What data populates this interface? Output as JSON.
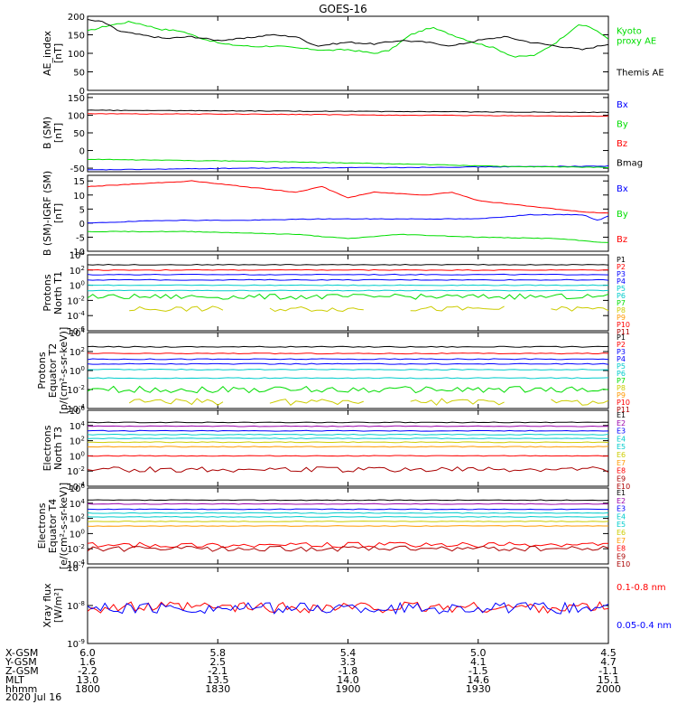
{
  "title": "GOES-16",
  "date": "2020 Jul 16",
  "colors": {
    "black": "#000000",
    "red": "#ff0000",
    "green": "#00dd00",
    "blue": "#0000ff",
    "cyan": "#00cccc",
    "yellow": "#cccc00",
    "orange": "#ff9900",
    "darkred": "#aa0000",
    "purple": "#9900aa"
  },
  "ephemeris": {
    "rows": [
      {
        "label": "X-GSM",
        "values": [
          "6.0",
          "5.8",
          "5.4",
          "5.0",
          "4.5"
        ]
      },
      {
        "label": "Y-GSM",
        "values": [
          "1.6",
          "2.5",
          "3.3",
          "4.1",
          "4.7"
        ]
      },
      {
        "label": "Z-GSM",
        "values": [
          "-2.2",
          "-2.1",
          "-1.8",
          "-1.5",
          "-1.1"
        ]
      },
      {
        "label": "MLT",
        "values": [
          "13.0",
          "13.5",
          "14.0",
          "14.6",
          "15.1"
        ]
      },
      {
        "label": "hhmm",
        "values": [
          "1800",
          "1830",
          "1900",
          "1930",
          "2000"
        ]
      }
    ]
  },
  "chart_data": [
    {
      "type": "line",
      "ylabel": [
        "AE_index",
        "[nT]"
      ],
      "scale": "linear",
      "ylim": [
        0,
        200
      ],
      "ticks": [
        0,
        50,
        100,
        150,
        200
      ],
      "tick_labels": [
        "0",
        "50",
        "100",
        "150",
        "200"
      ],
      "x": [
        1800,
        2000
      ],
      "series": [
        {
          "name": "Kyoto proxy AE",
          "color": "#00dd00",
          "legend": "Kyoto\nproxy AE",
          "points": [
            [
              0,
              160
            ],
            [
              0.04,
              175
            ],
            [
              0.08,
              185
            ],
            [
              0.1,
              180
            ],
            [
              0.14,
              165
            ],
            [
              0.18,
              160
            ],
            [
              0.22,
              140
            ],
            [
              0.26,
              125
            ],
            [
              0.32,
              118
            ],
            [
              0.36,
              120
            ],
            [
              0.42,
              112
            ],
            [
              0.46,
              108
            ],
            [
              0.5,
              110
            ],
            [
              0.55,
              100
            ],
            [
              0.58,
              108
            ],
            [
              0.62,
              150
            ],
            [
              0.66,
              170
            ],
            [
              0.7,
              150
            ],
            [
              0.74,
              130
            ],
            [
              0.78,
              115
            ],
            [
              0.82,
              90
            ],
            [
              0.86,
              95
            ],
            [
              0.9,
              130
            ],
            [
              0.94,
              175
            ],
            [
              0.96,
              175
            ],
            [
              1,
              140
            ]
          ]
        },
        {
          "name": "Themis AE",
          "color": "#000000",
          "legend": "Themis AE",
          "points": [
            [
              0,
              190
            ],
            [
              0.03,
              185
            ],
            [
              0.06,
              160
            ],
            [
              0.1,
              150
            ],
            [
              0.15,
              140
            ],
            [
              0.2,
              145
            ],
            [
              0.25,
              135
            ],
            [
              0.3,
              140
            ],
            [
              0.35,
              150
            ],
            [
              0.4,
              145
            ],
            [
              0.44,
              120
            ],
            [
              0.5,
              130
            ],
            [
              0.55,
              125
            ],
            [
              0.6,
              135
            ],
            [
              0.65,
              130
            ],
            [
              0.7,
              120
            ],
            [
              0.75,
              135
            ],
            [
              0.8,
              145
            ],
            [
              0.85,
              130
            ],
            [
              0.9,
              120
            ],
            [
              0.95,
              110
            ],
            [
              1,
              125
            ]
          ]
        }
      ]
    },
    {
      "type": "line",
      "ylabel": [
        "B (SM)",
        "[nT]"
      ],
      "scale": "linear",
      "ylim": [
        -60,
        160
      ],
      "ticks": [
        -50,
        0,
        50,
        100,
        150
      ],
      "tick_labels": [
        "-50",
        "0",
        "50",
        "100",
        "150"
      ],
      "x": [
        1800,
        2000
      ],
      "series": [
        {
          "name": "Bx",
          "color": "#0000ff",
          "legend": "Bx",
          "points": [
            [
              0,
              -55
            ],
            [
              0.3,
              -50
            ],
            [
              0.6,
              -48
            ],
            [
              1,
              -44
            ]
          ]
        },
        {
          "name": "By",
          "color": "#00dd00",
          "legend": "By",
          "points": [
            [
              0,
              -25
            ],
            [
              0.3,
              -30
            ],
            [
              0.6,
              -38
            ],
            [
              0.8,
              -45
            ],
            [
              1,
              -48
            ]
          ]
        },
        {
          "name": "Bz",
          "color": "#ff0000",
          "legend": "Bz",
          "points": [
            [
              0,
              104
            ],
            [
              0.3,
              103
            ],
            [
              0.6,
              100
            ],
            [
              1,
              97
            ]
          ]
        },
        {
          "name": "Bmag",
          "color": "#000000",
          "legend": "Bmag",
          "points": [
            [
              0,
              114
            ],
            [
              0.3,
              112
            ],
            [
              0.6,
              110
            ],
            [
              1,
              108
            ]
          ]
        }
      ]
    },
    {
      "type": "line",
      "ylabel": [
        "B (SM)-IGRF (SM)",
        "[nT]"
      ],
      "scale": "linear",
      "ylim": [
        -10,
        17
      ],
      "ticks": [
        -10,
        -5,
        0,
        5,
        10,
        15
      ],
      "tick_labels": [
        "-10",
        "-5",
        "0",
        "5",
        "10",
        "15"
      ],
      "x": [
        1800,
        2000
      ],
      "series": [
        {
          "name": "Bx",
          "color": "#0000ff",
          "legend": "Bx",
          "points": [
            [
              0,
              0
            ],
            [
              0.15,
              1
            ],
            [
              0.3,
              1
            ],
            [
              0.45,
              1.5
            ],
            [
              0.6,
              1.5
            ],
            [
              0.75,
              1.5
            ],
            [
              0.85,
              3
            ],
            [
              0.95,
              3
            ],
            [
              0.98,
              1
            ],
            [
              1,
              2.5
            ]
          ]
        },
        {
          "name": "By",
          "color": "#00dd00",
          "legend": "By",
          "points": [
            [
              0,
              -3
            ],
            [
              0.2,
              -3
            ],
            [
              0.4,
              -4
            ],
            [
              0.5,
              -5.5
            ],
            [
              0.6,
              -4
            ],
            [
              0.75,
              -5
            ],
            [
              0.9,
              -5.5
            ],
            [
              1,
              -7
            ]
          ]
        },
        {
          "name": "Bz",
          "color": "#ff0000",
          "legend": "Bz",
          "points": [
            [
              0,
              13
            ],
            [
              0.1,
              14
            ],
            [
              0.2,
              15
            ],
            [
              0.3,
              13
            ],
            [
              0.4,
              11
            ],
            [
              0.45,
              13
            ],
            [
              0.5,
              9
            ],
            [
              0.55,
              11
            ],
            [
              0.65,
              10
            ],
            [
              0.7,
              11
            ],
            [
              0.75,
              8
            ],
            [
              0.85,
              6
            ],
            [
              0.9,
              5
            ],
            [
              0.95,
              4
            ],
            [
              1,
              3.5
            ]
          ]
        }
      ]
    },
    {
      "type": "line",
      "ylabel": [
        "Protons",
        "North T1"
      ],
      "scale": "log",
      "ylim": [
        -6,
        4
      ],
      "ticks": [
        -6,
        -4,
        -2,
        0,
        2,
        4
      ],
      "tick_labels": [
        "10^-6",
        "10^-4",
        "10^-2",
        "10^0",
        "10^2",
        "10^4"
      ],
      "x": [
        1800,
        2000
      ],
      "channels": [
        {
          "name": "P1",
          "color": "#000000",
          "level": 2.7
        },
        {
          "name": "P2",
          "color": "#ff0000",
          "level": 2.0
        },
        {
          "name": "P3",
          "color": "#0000ff",
          "level": 1.4
        },
        {
          "name": "P4",
          "color": "#0000ff",
          "level": 0.7
        },
        {
          "name": "P5",
          "color": "#00cccc",
          "level": 0.0
        },
        {
          "name": "P6",
          "color": "#00cccc",
          "level": -0.7
        },
        {
          "name": "P7",
          "color": "#00dd00",
          "level": -1.5
        },
        {
          "name": "P8",
          "color": "#cccc00",
          "level": -3.1
        },
        {
          "name": "P9",
          "color": "#ff9900",
          "level": null
        },
        {
          "name": "P10",
          "color": "#ff0000",
          "level": null
        },
        {
          "name": "P11",
          "color": "#aa0000",
          "level": null
        }
      ]
    },
    {
      "type": "line",
      "ylabel": [
        "Protons",
        "Equator T2",
        "[p/(cm²-s-sr-keV)]"
      ],
      "scale": "log",
      "ylim": [
        -4,
        4
      ],
      "ticks": [
        -4,
        -2,
        0,
        2,
        4
      ],
      "tick_labels": [
        "10^-4",
        "10^-2",
        "10^0",
        "10^2",
        "10^4"
      ],
      "x": [
        1800,
        2000
      ],
      "channels": [
        {
          "name": "P1",
          "color": "#000000",
          "level": 2.5
        },
        {
          "name": "P2",
          "color": "#ff0000",
          "level": 1.8
        },
        {
          "name": "P3",
          "color": "#0000ff",
          "level": 1.2
        },
        {
          "name": "P4",
          "color": "#0000ff",
          "level": 0.7
        },
        {
          "name": "P5",
          "color": "#00cccc",
          "level": 0.1
        },
        {
          "name": "P6",
          "color": "#00cccc",
          "level": -0.8
        },
        {
          "name": "P7",
          "color": "#00dd00",
          "level": -2.0
        },
        {
          "name": "P8",
          "color": "#cccc00",
          "level": -3.3
        },
        {
          "name": "P9",
          "color": "#ff9900",
          "level": null
        },
        {
          "name": "P10",
          "color": "#ff0000",
          "level": null
        },
        {
          "name": "P11",
          "color": "#aa0000",
          "level": null
        }
      ]
    },
    {
      "type": "line",
      "ylabel": [
        "Electrons",
        "North T3"
      ],
      "scale": "log",
      "ylim": [
        -4,
        6
      ],
      "ticks": [
        -4,
        -2,
        0,
        2,
        4,
        6
      ],
      "tick_labels": [
        "10^-4",
        "10^-2",
        "10^0",
        "10^2",
        "10^4",
        "10^6"
      ],
      "x": [
        1800,
        2000
      ],
      "channels": [
        {
          "name": "E1",
          "color": "#000000",
          "level": 4.4
        },
        {
          "name": "E2",
          "color": "#9900aa",
          "level": 3.9
        },
        {
          "name": "E3",
          "color": "#0000ff",
          "level": 3.3
        },
        {
          "name": "E4",
          "color": "#00cccc",
          "level": 2.8
        },
        {
          "name": "E5",
          "color": "#00cccc",
          "level": 2.3
        },
        {
          "name": "E6",
          "color": "#cccc00",
          "level": 1.8
        },
        {
          "name": "E7",
          "color": "#ff9900",
          "level": 1.2
        },
        {
          "name": "E8",
          "color": "#ff0000",
          "level": 0.0
        },
        {
          "name": "E9",
          "color": "#aa0000",
          "level": -1.8
        },
        {
          "name": "E10",
          "color": "#aa0000",
          "level": null
        }
      ]
    },
    {
      "type": "line",
      "ylabel": [
        "Electrons",
        "Equator T4",
        "[e/(cm²-s-sr-keV)]"
      ],
      "scale": "log",
      "ylim": [
        -4,
        6
      ],
      "ticks": [
        -4,
        -2,
        0,
        2,
        4,
        6
      ],
      "tick_labels": [
        "10^-4",
        "10^-2",
        "10^0",
        "10^2",
        "10^4",
        "10^6"
      ],
      "x": [
        1800,
        2000
      ],
      "channels": [
        {
          "name": "E1",
          "color": "#000000",
          "level": 4.4
        },
        {
          "name": "E2",
          "color": "#9900aa",
          "level": 3.9
        },
        {
          "name": "E3",
          "color": "#0000ff",
          "level": 3.2
        },
        {
          "name": "E4",
          "color": "#00cccc",
          "level": 2.7
        },
        {
          "name": "E5",
          "color": "#00cccc",
          "level": 2.2
        },
        {
          "name": "E6",
          "color": "#cccc00",
          "level": 1.6
        },
        {
          "name": "E7",
          "color": "#ff9900",
          "level": 1.0
        },
        {
          "name": "E8",
          "color": "#ff0000",
          "level": -1.5
        },
        {
          "name": "E9",
          "color": "#aa0000",
          "level": -2.0
        },
        {
          "name": "E10",
          "color": "#aa0000",
          "level": null
        }
      ]
    },
    {
      "type": "line",
      "ylabel": [
        "Xray flux",
        "[W/m²]"
      ],
      "scale": "log",
      "ylim": [
        -9,
        -7
      ],
      "ticks": [
        -9,
        -8,
        -7
      ],
      "tick_labels": [
        "10^-9",
        "10^-8",
        "10^-7"
      ],
      "x": [
        1800,
        2000
      ],
      "series": [
        {
          "name": "0.1-0.8 nm",
          "color": "#ff0000",
          "legend": "0.1-0.8 nm",
          "level": -8.05
        },
        {
          "name": "0.05-0.4 nm",
          "color": "#0000ff",
          "legend": "0.05-0.4 nm",
          "level": -8.07
        }
      ]
    }
  ]
}
